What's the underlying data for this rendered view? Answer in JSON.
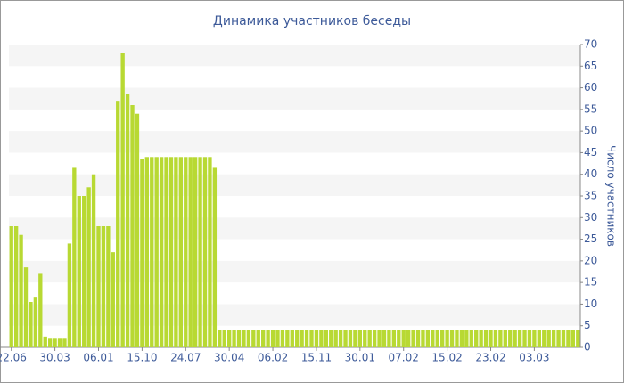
{
  "chart_data": {
    "type": "bar",
    "title": "Динамика участников беседы",
    "y_axis_label": "Число участников",
    "color": "#b8d933",
    "categories": [
      "22.06",
      null,
      null,
      null,
      null,
      null,
      null,
      null,
      null,
      "30.03",
      null,
      null,
      null,
      null,
      null,
      null,
      null,
      null,
      "06.01",
      null,
      null,
      null,
      null,
      null,
      null,
      null,
      null,
      "15.10",
      null,
      null,
      null,
      null,
      null,
      null,
      null,
      null,
      "24.07",
      null,
      null,
      null,
      null,
      null,
      null,
      null,
      null,
      "30.04",
      null,
      null,
      null,
      null,
      null,
      null,
      null,
      null,
      "06.02",
      null,
      null,
      null,
      null,
      null,
      null,
      null,
      null,
      "15.11",
      null,
      null,
      null,
      null,
      null,
      null,
      null,
      null,
      "30.01",
      null,
      null,
      null,
      null,
      null,
      null,
      null,
      null,
      "07.02",
      null,
      null,
      null,
      null,
      null,
      null,
      null,
      null,
      "15.02",
      null,
      null,
      null,
      null,
      null,
      null,
      null,
      null,
      "23.02",
      null,
      null,
      null,
      null,
      null,
      null,
      null,
      null,
      "03.03",
      null,
      null,
      null,
      null,
      null,
      null,
      null,
      null,
      null
    ],
    "values": [
      28,
      28,
      26,
      18.5,
      10.5,
      11.5,
      17,
      2.5,
      2,
      2,
      2,
      2,
      24,
      41.5,
      35,
      35,
      37,
      40,
      28,
      28,
      28,
      22,
      57,
      68,
      58.5,
      56,
      54,
      43.5,
      44,
      44,
      44,
      44,
      44,
      44,
      44,
      44,
      44,
      44,
      44,
      44,
      44,
      44,
      41.5,
      4,
      4,
      4,
      4,
      4,
      4,
      4,
      4,
      4,
      4,
      4,
      4,
      4,
      4,
      4,
      4,
      4,
      4,
      4,
      4,
      4,
      4,
      4,
      4,
      4,
      4,
      4,
      4,
      4,
      4,
      4,
      4,
      4,
      4,
      4,
      4,
      4,
      4,
      4,
      4,
      4,
      4,
      4,
      4,
      4,
      4,
      4,
      4,
      4,
      4,
      4,
      4,
      4,
      4,
      4,
      4,
      4,
      4,
      4,
      4,
      4,
      4,
      4,
      4,
      4,
      4,
      4,
      4,
      4,
      4,
      4,
      4,
      4,
      4,
      4
    ],
    "ylim": [
      0,
      70
    ],
    "yticks": [
      0,
      5,
      10,
      15,
      20,
      25,
      30,
      35,
      40,
      45,
      50,
      55,
      60,
      65,
      70
    ],
    "grid": true
  }
}
